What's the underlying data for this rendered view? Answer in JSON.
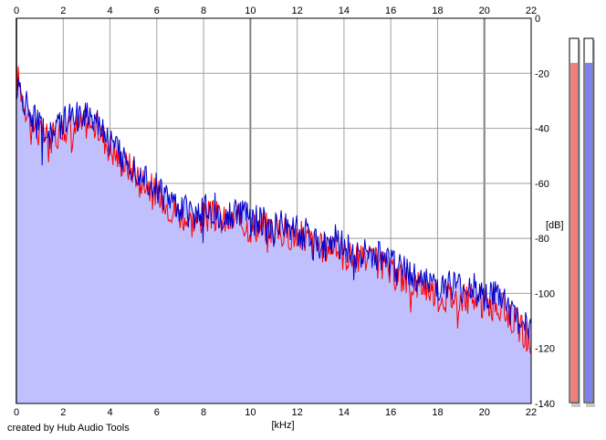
{
  "app": {
    "credit": "created by Hub Audio Tools"
  },
  "colors": {
    "background": "#ffffff",
    "grid": "#a0a0a0",
    "grid_major": "#808080",
    "fill": "#c0c0ff",
    "channel_left": "#ff0000",
    "channel_right": "#0000cc",
    "meter_left": "#f08080",
    "meter_right": "#8080f0"
  },
  "chart_data": {
    "type": "line",
    "xlabel": "[kHz]",
    "ylabel": "[dB]",
    "xlim": [
      0,
      22
    ],
    "ylim": [
      -140,
      0
    ],
    "x_ticks": [
      0,
      2,
      4,
      6,
      8,
      10,
      12,
      14,
      16,
      18,
      20,
      22
    ],
    "y_ticks": [
      0,
      -20,
      -40,
      -60,
      -80,
      -100,
      -120,
      -140
    ],
    "grid": true,
    "series": [
      {
        "color": "#ff0000",
        "x": [
          0,
          0.5,
          1,
          1.5,
          2,
          2.5,
          3,
          3.5,
          4,
          4.5,
          5,
          5.5,
          6,
          6.5,
          7,
          7.5,
          8,
          8.5,
          9,
          9.5,
          10,
          10.5,
          11,
          11.5,
          12,
          12.5,
          13,
          13.5,
          14,
          14.5,
          15,
          15.5,
          16,
          16.5,
          17,
          17.5,
          18,
          18.5,
          19,
          19.5,
          20,
          20.5,
          21,
          21.5,
          22
        ],
        "values": [
          -20,
          -35,
          -42,
          -44,
          -40,
          -40,
          -38,
          -40,
          -47,
          -52,
          -55,
          -59,
          -64,
          -68,
          -71,
          -74,
          -72,
          -72,
          -74,
          -73,
          -76,
          -75,
          -77,
          -78,
          -79,
          -80,
          -84,
          -82,
          -86,
          -87,
          -88,
          -89,
          -93,
          -94,
          -96,
          -97,
          -101,
          -101,
          -102,
          -102,
          -104,
          -104,
          -107,
          -112,
          -119
        ]
      },
      {
        "color": "#0000cc",
        "x": [
          0,
          0.5,
          1,
          1.5,
          2,
          2.5,
          3,
          3.5,
          4,
          4.5,
          5,
          5.5,
          6,
          6.5,
          7,
          7.5,
          8,
          8.5,
          9,
          9.5,
          10,
          10.5,
          11,
          11.5,
          12,
          12.5,
          13,
          13.5,
          14,
          14.5,
          15,
          15.5,
          16,
          16.5,
          17,
          17.5,
          18,
          18.5,
          19,
          19.5,
          20,
          20.5,
          21,
          21.5,
          22
        ],
        "values": [
          -25,
          -33,
          -40,
          -42,
          -38,
          -36,
          -34,
          -37,
          -45,
          -50,
          -54,
          -57,
          -62,
          -66,
          -69,
          -71,
          -70,
          -69,
          -72,
          -70,
          -74,
          -73,
          -75,
          -76,
          -77,
          -78,
          -82,
          -80,
          -83,
          -85,
          -86,
          -87,
          -90,
          -91,
          -94,
          -94,
          -98,
          -97,
          -99,
          -98,
          -101,
          -101,
          -104,
          -110,
          -115
        ]
      }
    ],
    "meters": [
      {
        "level": 0.935
      },
      {
        "level": 0.935
      }
    ]
  }
}
